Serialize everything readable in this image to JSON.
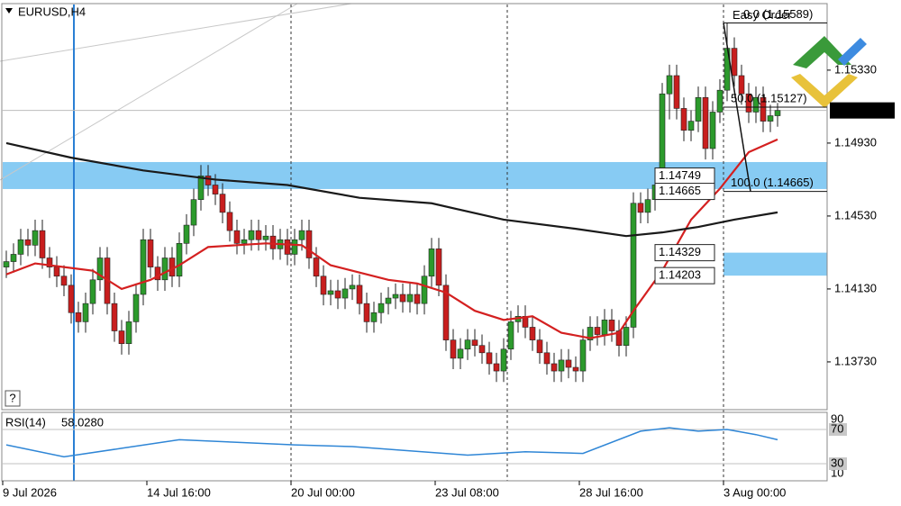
{
  "chart_data": {
    "type": "candlestick",
    "title": "EURUSD,H4",
    "categories": [
      "9 Jul 2026",
      null,
      null,
      null,
      null,
      null,
      null,
      null,
      null,
      null,
      null,
      null,
      null,
      null,
      null,
      null,
      null,
      null,
      null,
      null,
      "14 Jul 16:00",
      null,
      null,
      null,
      null,
      null,
      null,
      null,
      null,
      null,
      null,
      null,
      null,
      null,
      null,
      null,
      null,
      null,
      null,
      null,
      "20 Jul 00:00",
      null,
      null,
      null,
      null,
      null,
      null,
      null,
      null,
      null,
      null,
      null,
      null,
      null,
      null,
      null,
      null,
      null,
      null,
      null,
      "23 Jul 08:00",
      null,
      null,
      null,
      null,
      null,
      null,
      null,
      null,
      null,
      null,
      null,
      null,
      null,
      null,
      null,
      null,
      null,
      null,
      null,
      "28 Jul 16:00",
      null,
      null,
      null,
      null,
      null,
      null,
      null,
      null,
      null,
      null,
      null,
      null,
      null,
      null,
      null,
      null,
      null,
      null,
      null,
      "3 Aug 00:00",
      null,
      null,
      null,
      null,
      null,
      null,
      null
    ],
    "open": [
      1.1425,
      1.1428,
      1.1432,
      1.144,
      1.1437,
      1.1445,
      1.143,
      1.1425,
      1.142,
      1.1415,
      1.14,
      1.1395,
      1.1405,
      1.1418,
      1.143,
      1.1405,
      1.139,
      1.1383,
      1.1395,
      1.141,
      1.144,
      1.1425,
      1.1418,
      1.143,
      1.142,
      1.1438,
      1.1448,
      1.1462,
      1.1475,
      1.147,
      1.1465,
      1.1455,
      1.1445,
      1.1438,
      1.144,
      1.1445,
      1.144,
      1.1442,
      1.1435,
      1.144,
      1.1432,
      1.144,
      1.1445,
      1.143,
      1.142,
      1.141,
      1.1412,
      1.1408,
      1.1413,
      1.1415,
      1.1405,
      1.1395,
      1.14,
      1.1405,
      1.1408,
      1.141,
      1.1406,
      1.141,
      1.1405,
      1.142,
      1.1435,
      1.1415,
      1.1385,
      1.1375,
      1.138,
      1.1385,
      1.1382,
      1.1378,
      1.1372,
      1.1368,
      1.138,
      1.1395,
      1.1398,
      1.1392,
      1.1385,
      1.1378,
      1.1372,
      1.1368,
      1.1374,
      1.137,
      1.1368,
      1.1385,
      1.1392,
      1.1388,
      1.1396,
      1.139,
      1.1382,
      1.1392,
      1.146,
      1.1455,
      1.1462,
      1.147,
      1.152,
      1.153,
      1.1512,
      1.15,
      1.1505,
      1.1518,
      1.149,
      1.151,
      1.1522,
      1.1545,
      1.153,
      1.152,
      1.151,
      1.1518,
      1.1505,
      1.1508
    ],
    "high": [
      1.1434,
      1.1438,
      1.1446,
      1.1446,
      1.1451,
      1.1451,
      1.1436,
      1.1431,
      1.1426,
      1.1421,
      1.1406,
      1.1411,
      1.1424,
      1.1436,
      1.1436,
      1.1411,
      1.1396,
      1.1401,
      1.1416,
      1.1446,
      1.1446,
      1.1431,
      1.1436,
      1.1436,
      1.1444,
      1.1454,
      1.1468,
      1.1481,
      1.1481,
      1.1476,
      1.1471,
      1.1461,
      1.1451,
      1.1446,
      1.1451,
      1.1451,
      1.1448,
      1.1448,
      1.1446,
      1.1446,
      1.1446,
      1.1451,
      1.1451,
      1.1436,
      1.1426,
      1.1418,
      1.1418,
      1.1419,
      1.1421,
      1.1421,
      1.1411,
      1.1406,
      1.1411,
      1.1414,
      1.1416,
      1.1416,
      1.1416,
      1.1416,
      1.1426,
      1.1441,
      1.1441,
      1.1421,
      1.1391,
      1.1386,
      1.1391,
      1.1391,
      1.1388,
      1.1384,
      1.1378,
      1.1386,
      1.1401,
      1.1404,
      1.1404,
      1.1398,
      1.1391,
      1.1384,
      1.1378,
      1.138,
      1.138,
      1.1376,
      1.1391,
      1.1398,
      1.1398,
      1.1402,
      1.1402,
      1.1396,
      1.1398,
      1.1466,
      1.1466,
      1.1468,
      1.1476,
      1.1526,
      1.1536,
      1.1536,
      1.1518,
      1.1511,
      1.1524,
      1.1524,
      1.1516,
      1.1528,
      1.1559,
      1.1551,
      1.1536,
      1.1526,
      1.1524,
      1.1524,
      1.1514,
      1.1515
    ],
    "low": [
      1.1419,
      1.1422,
      1.1426,
      1.1431,
      1.1431,
      1.1424,
      1.1419,
      1.1414,
      1.1409,
      1.1394,
      1.1389,
      1.1389,
      1.1399,
      1.1412,
      1.1399,
      1.1384,
      1.1377,
      1.1377,
      1.1389,
      1.1404,
      1.1419,
      1.1412,
      1.1412,
      1.1414,
      1.1414,
      1.1432,
      1.1442,
      1.1456,
      1.1464,
      1.1459,
      1.1449,
      1.1439,
      1.1432,
      1.1432,
      1.1434,
      1.1434,
      1.1434,
      1.1429,
      1.1429,
      1.1426,
      1.1426,
      1.1434,
      1.1424,
      1.1414,
      1.1404,
      1.1404,
      1.1402,
      1.1402,
      1.1407,
      1.1399,
      1.1389,
      1.1389,
      1.1394,
      1.1399,
      1.1402,
      1.14,
      1.14,
      1.1399,
      1.1399,
      1.1414,
      1.1409,
      1.1379,
      1.1369,
      1.1369,
      1.1374,
      1.1376,
      1.1372,
      1.1366,
      1.1362,
      1.1362,
      1.1374,
      1.1389,
      1.1386,
      1.1379,
      1.1372,
      1.1366,
      1.1362,
      1.1362,
      1.1364,
      1.1362,
      1.1362,
      1.1379,
      1.1382,
      1.1382,
      1.1384,
      1.1376,
      1.1376,
      1.1386,
      1.1449,
      1.1449,
      1.1456,
      1.1464,
      1.1506,
      1.1506,
      1.1494,
      1.1494,
      1.1499,
      1.1484,
      1.1484,
      1.1504,
      1.1516,
      1.1524,
      1.1514,
      1.1504,
      1.1504,
      1.1499,
      1.1499,
      1.1502
    ],
    "close": [
      1.1428,
      1.1432,
      1.144,
      1.1437,
      1.1445,
      1.143,
      1.1425,
      1.142,
      1.1415,
      1.14,
      1.1395,
      1.1405,
      1.1418,
      1.143,
      1.1405,
      1.139,
      1.1383,
      1.1395,
      1.141,
      1.144,
      1.1425,
      1.1418,
      1.143,
      1.142,
      1.1438,
      1.1448,
      1.1462,
      1.1475,
      1.147,
      1.1465,
      1.1455,
      1.1445,
      1.1438,
      1.144,
      1.1445,
      1.144,
      1.1442,
      1.1435,
      1.144,
      1.1432,
      1.144,
      1.1445,
      1.143,
      1.142,
      1.141,
      1.1412,
      1.1408,
      1.1413,
      1.1415,
      1.1405,
      1.1395,
      1.14,
      1.1405,
      1.1408,
      1.141,
      1.1406,
      1.141,
      1.1405,
      1.142,
      1.1435,
      1.1415,
      1.1385,
      1.1375,
      1.138,
      1.1385,
      1.1382,
      1.1378,
      1.1372,
      1.1368,
      1.138,
      1.1395,
      1.1398,
      1.1392,
      1.1385,
      1.1378,
      1.1372,
      1.1368,
      1.1374,
      1.137,
      1.1368,
      1.1385,
      1.1392,
      1.1388,
      1.1396,
      1.139,
      1.1382,
      1.1392,
      1.146,
      1.1455,
      1.1462,
      1.147,
      1.152,
      1.153,
      1.1512,
      1.15,
      1.1505,
      1.1518,
      1.149,
      1.151,
      1.1522,
      1.1545,
      1.153,
      1.152,
      1.151,
      1.1518,
      1.1505,
      1.1508,
      1.15109
    ],
    "up_color": "#2c9a2c",
    "down_color": "#c81e1e",
    "ylim": [
      1.13468,
      1.1569
    ],
    "yticks": [
      {
        "value": 1.1533,
        "label": "1.15330"
      },
      {
        "value": 1.1493,
        "label": "1.14930"
      },
      {
        "value": 1.1453,
        "label": "1.14530"
      },
      {
        "value": 1.1413,
        "label": "1.14130"
      },
      {
        "value": 1.1373,
        "label": "1.13730"
      }
    ],
    "current_price": 1.15109,
    "moving_averages": [
      {
        "color": "#d42020",
        "x": [
          0,
          4,
          8,
          12,
          16,
          20,
          24,
          28,
          32,
          36,
          41,
          45,
          49,
          53,
          57,
          61,
          65,
          69,
          73,
          77,
          81,
          85,
          87,
          91,
          95,
          99,
          103,
          107
        ],
        "values": [
          1.1421,
          1.1427,
          1.1425,
          1.1423,
          1.1413,
          1.1418,
          1.1426,
          1.1436,
          1.1437,
          1.1438,
          1.1437,
          1.1426,
          1.1422,
          1.1418,
          1.1416,
          1.1411,
          1.1401,
          1.1396,
          1.1398,
          1.1389,
          1.1386,
          1.1389,
          1.1401,
          1.1423,
          1.1451,
          1.1468,
          1.1488,
          1.1495
        ]
      },
      {
        "color": "#1a1a1a",
        "x": [
          0,
          9,
          19,
          29,
          39,
          49,
          59,
          69,
          79,
          86,
          91,
          96,
          101,
          107
        ],
        "values": [
          1.1493,
          1.1485,
          1.1478,
          1.1473,
          1.147,
          1.1463,
          1.146,
          1.1451,
          1.1446,
          1.1442,
          1.1444,
          1.1447,
          1.1451,
          1.1455
        ]
      }
    ],
    "zone_color": "#87cbf3",
    "zones": [
      {
        "start_index": 0,
        "low": 1.14678,
        "high": 1.14826
      },
      {
        "start_index": 100,
        "low": 1.14203,
        "high": 1.14329
      }
    ],
    "price_labels": [
      1.14749,
      1.14665,
      1.14329,
      1.14203
    ],
    "fibonacci": {
      "start_index": 100,
      "levels": [
        {
          "value": 1.15589,
          "label": "0.0 (1.15589)"
        },
        {
          "value": 1.15127,
          "label": "50.0 (1.15127)"
        },
        {
          "value": 1.14665,
          "label": "100.0 (1.14665)"
        }
      ]
    },
    "order_label": "Easy Order",
    "help_button": "?",
    "indicator": {
      "type": "line",
      "title": "RSI(14)",
      "current": {
        "value": 58.028,
        "label": "58.0280"
      },
      "color": "#2f86d6",
      "x": [
        0,
        8,
        16,
        24,
        32,
        40,
        48,
        56,
        64,
        72,
        80,
        88,
        92,
        96,
        100,
        104,
        107
      ],
      "values": [
        52,
        38,
        48,
        58,
        55,
        52,
        50,
        45,
        40,
        44,
        42,
        68,
        72,
        68,
        70,
        64,
        58.028
      ],
      "ylim": [
        10,
        90
      ],
      "yticks": [
        10,
        30,
        70,
        90
      ],
      "levels": [
        30,
        70
      ]
    }
  }
}
